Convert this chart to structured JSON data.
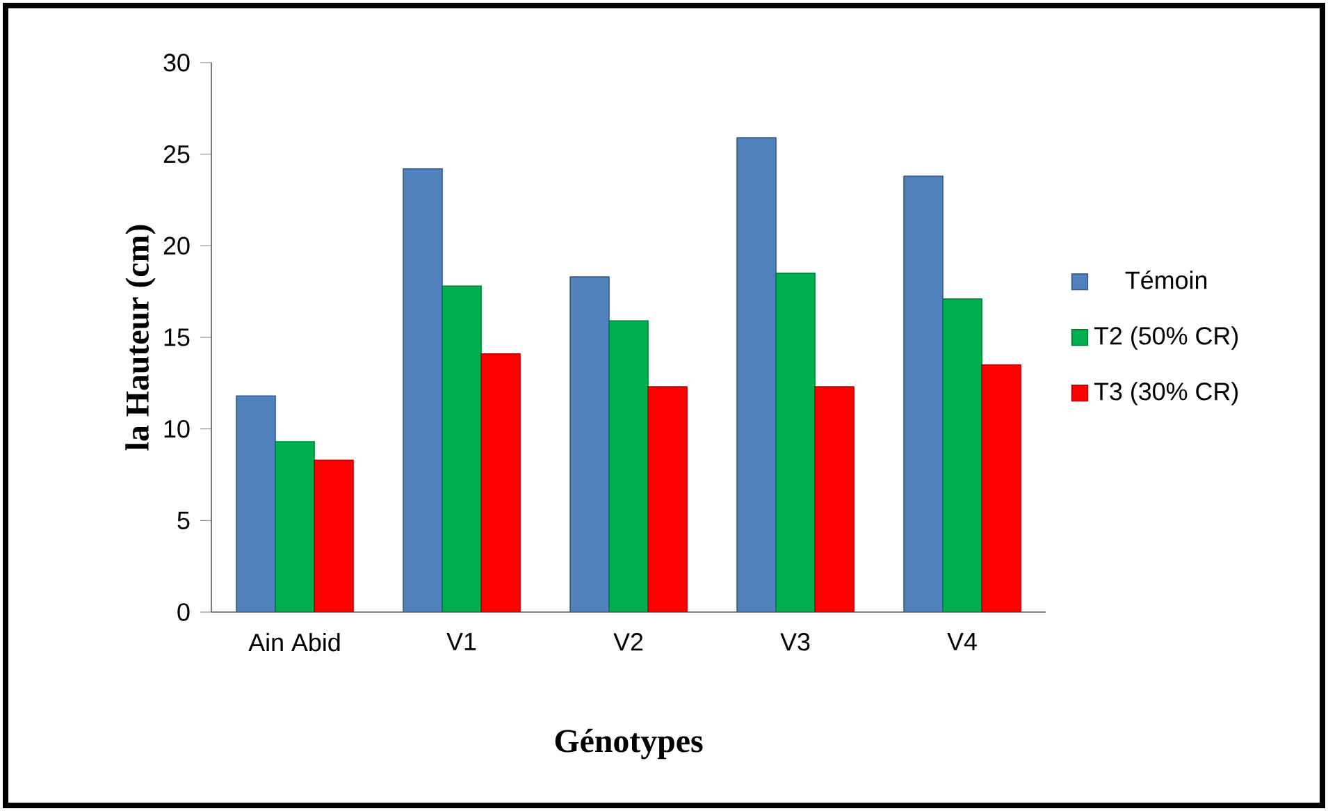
{
  "chart_data": {
    "type": "bar",
    "xlabel": "Génotypes",
    "ylabel": "la Hauteur (cm)",
    "categories": [
      "Ain Abid",
      "V1",
      "V2",
      "V3",
      "V4"
    ],
    "series": [
      {
        "name": "Témoin",
        "color": "#4f81bd",
        "values": [
          11.8,
          24.2,
          18.3,
          25.9,
          23.8
        ]
      },
      {
        "name": "T2 (50% CR)",
        "color": "#00b050",
        "values": [
          9.3,
          17.8,
          15.9,
          18.5,
          17.1
        ]
      },
      {
        "name": "T3 (30% CR)",
        "color": "#ff0000",
        "values": [
          8.3,
          14.1,
          12.3,
          12.3,
          13.5
        ]
      }
    ],
    "ylim": [
      0,
      30
    ],
    "yticks": [
      0,
      5,
      10,
      15,
      20,
      25,
      30
    ],
    "grid": false,
    "legend": "right"
  }
}
